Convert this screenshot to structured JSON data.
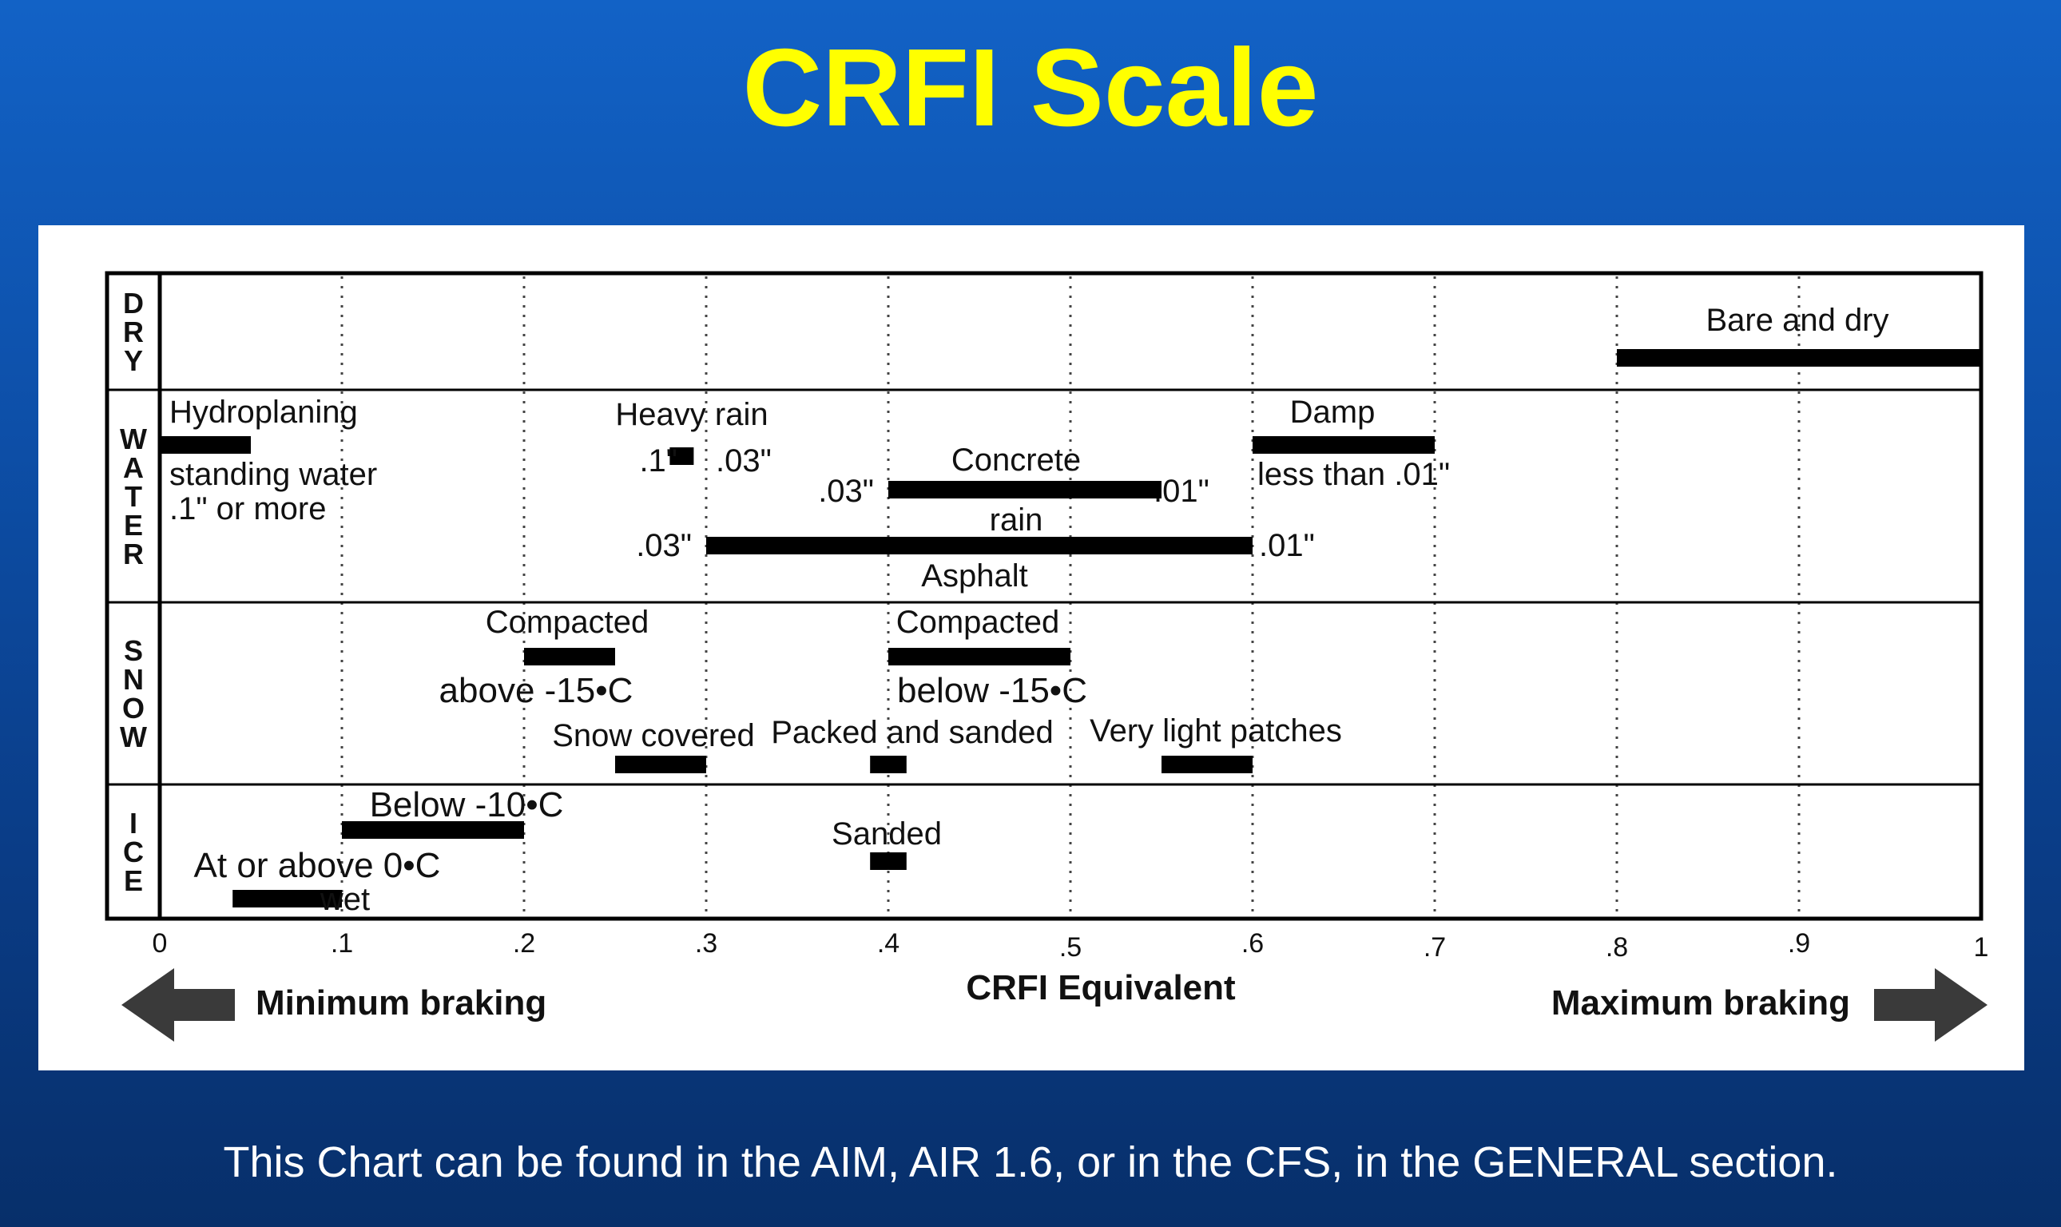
{
  "slide": {
    "title": "CRFI Scale",
    "footer": "This Chart can be found in the AIM, AIR 1.6, or in the CFS, in the GENERAL section."
  },
  "colors": {
    "background_top": "#1262c6",
    "background_bottom": "#072f6a",
    "title": "#ffff00",
    "bar": "#000000",
    "panel": "#ffffff"
  },
  "chart_data": {
    "type": "range-bar",
    "xlabel": "CRFI Equivalent",
    "xlim": [
      0,
      1
    ],
    "ticks": [
      {
        "value": 0,
        "label": "0"
      },
      {
        "value": 0.1,
        "label": ".1"
      },
      {
        "value": 0.2,
        "label": ".2"
      },
      {
        "value": 0.3,
        "label": ".3"
      },
      {
        "value": 0.4,
        "label": ".4"
      },
      {
        "value": 0.5,
        "label": ".5"
      },
      {
        "value": 0.6,
        "label": ".6"
      },
      {
        "value": 0.7,
        "label": ".7"
      },
      {
        "value": 0.8,
        "label": ".8"
      },
      {
        "value": 0.9,
        "label": ".9"
      },
      {
        "value": 1,
        "label": "1"
      }
    ],
    "grid": "dotted vertical at every tick",
    "arrows": {
      "left": "Minimum braking",
      "right": "Maximum braking"
    },
    "categories": [
      "DRY",
      "WATER",
      "SNOW",
      "ICE"
    ],
    "bars": [
      {
        "category": "DRY",
        "label": "Bare and dry",
        "start": 0.8,
        "end": 1.0
      },
      {
        "category": "WATER",
        "label": "Hydroplaning",
        "start": 0.0,
        "end": 0.05
      },
      {
        "category": "WATER",
        "label": "Heavy rain",
        "start": 0.28,
        "end": 0.29
      },
      {
        "category": "WATER",
        "label": "Concrete",
        "start": 0.4,
        "end": 0.55
      },
      {
        "category": "WATER",
        "label": "Asphalt",
        "start": 0.3,
        "end": 0.6
      },
      {
        "category": "WATER",
        "label": "Damp",
        "start": 0.6,
        "end": 0.7
      },
      {
        "category": "SNOW",
        "label": "Compacted above -15•C",
        "start": 0.2,
        "end": 0.25
      },
      {
        "category": "SNOW",
        "label": "Compacted below -15•C",
        "start": 0.4,
        "end": 0.5
      },
      {
        "category": "SNOW",
        "label": "Snow covered",
        "start": 0.25,
        "end": 0.3
      },
      {
        "category": "SNOW",
        "label": "Packed and sanded",
        "start": 0.39,
        "end": 0.41
      },
      {
        "category": "SNOW",
        "label": "Very light patches",
        "start": 0.55,
        "end": 0.6
      },
      {
        "category": "ICE",
        "label": "Below -10•C",
        "start": 0.1,
        "end": 0.2
      },
      {
        "category": "ICE",
        "label": "Sanded",
        "start": 0.39,
        "end": 0.41
      },
      {
        "category": "ICE",
        "label": "At or above 0•C wet",
        "start": 0.04,
        "end": 0.1
      }
    ],
    "text_labels": [
      {
        "key": "bare",
        "text": "Bare and dry"
      },
      {
        "key": "hydro",
        "text": "Hydroplaning"
      },
      {
        "key": "standing1",
        "text": "standing water"
      },
      {
        "key": "standing2",
        "text": ".1\" or more"
      },
      {
        "key": "heavy",
        "text": "Heavy rain"
      },
      {
        "key": "heavy_l",
        "text": ".1\""
      },
      {
        "key": "heavy_r",
        "text": ".03\""
      },
      {
        "key": "concrete",
        "text": "Concrete"
      },
      {
        "key": "conc_l",
        "text": ".03\""
      },
      {
        "key": "conc_r",
        "text": ".01\""
      },
      {
        "key": "rain",
        "text": "rain"
      },
      {
        "key": "asph_l",
        "text": ".03\""
      },
      {
        "key": "asph_r",
        "text": ".01\""
      },
      {
        "key": "asphalt",
        "text": "Asphalt"
      },
      {
        "key": "damp",
        "text": "Damp"
      },
      {
        "key": "damp2",
        "text": "less than .01\""
      },
      {
        "key": "comp1",
        "text": "Compacted"
      },
      {
        "key": "above15",
        "text": "above -15•C"
      },
      {
        "key": "comp2",
        "text": "Compacted"
      },
      {
        "key": "below15",
        "text": "below -15•C"
      },
      {
        "key": "snowcov",
        "text": "Snow covered"
      },
      {
        "key": "packed",
        "text": "Packed and sanded"
      },
      {
        "key": "verylight",
        "text": "Very light patches"
      },
      {
        "key": "below10",
        "text": "Below -10•C"
      },
      {
        "key": "sanded",
        "text": "Sanded"
      },
      {
        "key": "atabove",
        "text": "At or above 0•C"
      },
      {
        "key": "wet",
        "text": "wet"
      }
    ]
  }
}
